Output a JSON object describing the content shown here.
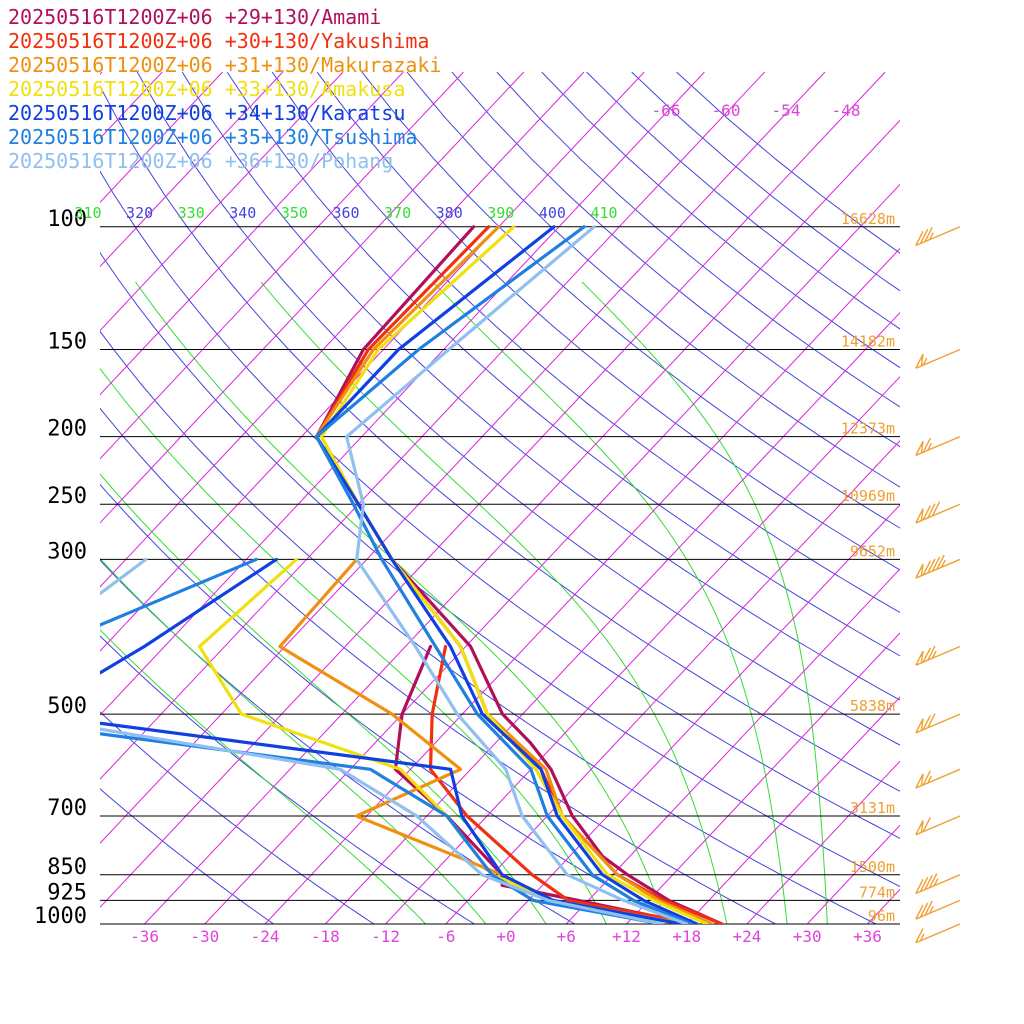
{
  "chart_data": {
    "type": "line",
    "title": "",
    "xlabel": "",
    "ylabel": "",
    "legend_placement": "top-left",
    "pressure_ticks": [
      {
        "p": 100,
        "label": "100",
        "height": "16628m"
      },
      {
        "p": 150,
        "label": "150",
        "height": "14182m"
      },
      {
        "p": 200,
        "label": "200",
        "height": "12373m"
      },
      {
        "p": 250,
        "label": "250",
        "height": "10969m"
      },
      {
        "p": 300,
        "label": "300",
        "height": "9652m"
      },
      {
        "p": 500,
        "label": "500",
        "height": "5838m"
      },
      {
        "p": 700,
        "label": "700",
        "height": "3131m"
      },
      {
        "p": 850,
        "label": "850",
        "height": "1500m"
      },
      {
        "p": 925,
        "label": "925",
        "height": "774m"
      },
      {
        "p": 1000,
        "label": "1000",
        "height": "96m"
      }
    ],
    "temperature_ticks": [
      {
        "t": -36,
        "label": "-36"
      },
      {
        "t": -30,
        "label": "-30"
      },
      {
        "t": -24,
        "label": "-24"
      },
      {
        "t": -18,
        "label": "-18"
      },
      {
        "t": -12,
        "label": "-12"
      },
      {
        "t": -6,
        "label": "-6"
      },
      {
        "t": 0,
        "label": "+0"
      },
      {
        "t": 6,
        "label": "+6"
      },
      {
        "t": 12,
        "label": "+12"
      },
      {
        "t": 18,
        "label": "+18"
      },
      {
        "t": 24,
        "label": "+24"
      },
      {
        "t": 30,
        "label": "+30"
      },
      {
        "t": 36,
        "label": "+36"
      }
    ],
    "upper_temp_labels": [
      "-66",
      "-60",
      "-54",
      "-48"
    ],
    "theta_labels": [
      "310",
      "320",
      "330",
      "340",
      "350",
      "360",
      "370",
      "380",
      "390",
      "400",
      "410"
    ],
    "colors": {
      "isotherm": "#dd22dd",
      "dry_adiabat": "#4444dd",
      "moist_adiabat": "#33dd33",
      "height": "#f0a030",
      "wind": "#f0a030",
      "isobar": "#000000",
      "axis_label": "#dd44dd"
    },
    "series": [
      {
        "name": "20250516T1200Z+06 +29+130/Amami",
        "color": "#b0105a",
        "temperature": [
          [
            100,
            -68.5
          ],
          [
            150,
            -68.0
          ],
          [
            200,
            -64.5
          ],
          [
            250,
            -54.0
          ],
          [
            300,
            -45.5
          ],
          [
            400,
            -29.5
          ],
          [
            500,
            -20.0
          ],
          [
            550,
            -14.5
          ],
          [
            600,
            -10.0
          ],
          [
            700,
            -3.5
          ],
          [
            800,
            3.3
          ],
          [
            850,
            7.5
          ],
          [
            925,
            14.0
          ],
          [
            1000,
            21.5
          ]
        ],
        "dewpoint": [
          [
            400,
            -33.5
          ],
          [
            500,
            -30.0
          ],
          [
            600,
            -25.5
          ],
          [
            700,
            -16.0
          ],
          [
            850,
            -5.0
          ],
          [
            880,
            -4.0
          ],
          [
            925,
            5.0
          ],
          [
            1000,
            18.5
          ]
        ]
      },
      {
        "name": "20250516T1200Z+06 +30+130/Yakushima",
        "color": "#f03010",
        "temperature": [
          [
            100,
            -67.0
          ],
          [
            150,
            -67.5
          ],
          [
            200,
            -64.5
          ],
          [
            250,
            -54.0
          ],
          [
            300,
            -45.5
          ],
          [
            400,
            -30.5
          ],
          [
            500,
            -21.5
          ],
          [
            600,
            -11.0
          ],
          [
            700,
            -4.5
          ],
          [
            850,
            6.5
          ],
          [
            925,
            13.5
          ],
          [
            1000,
            21.5
          ]
        ],
        "dewpoint": [
          [
            400,
            -32.0
          ],
          [
            500,
            -27.0
          ],
          [
            600,
            -22.0
          ],
          [
            700,
            -14.0
          ],
          [
            850,
            -2.0
          ],
          [
            925,
            4.0
          ],
          [
            1000,
            19.0
          ]
        ]
      },
      {
        "name": "20250516T1200Z+06 +31+130/Makurazaki",
        "color": "#f09010",
        "temperature": [
          [
            100,
            -66.0
          ],
          [
            150,
            -67.0
          ],
          [
            200,
            -64.5
          ],
          [
            250,
            -54.0
          ],
          [
            300,
            -45.5
          ],
          [
            400,
            -30.5
          ],
          [
            500,
            -21.5
          ],
          [
            600,
            -10.5
          ],
          [
            700,
            -4.5
          ],
          [
            850,
            6.5
          ],
          [
            925,
            13.0
          ],
          [
            1000,
            20.5
          ]
        ],
        "dewpoint": [
          [
            300,
            -49.0
          ],
          [
            400,
            -48.5
          ],
          [
            500,
            -31.0
          ],
          [
            600,
            -19.0
          ],
          [
            700,
            -25.0
          ],
          [
            850,
            -5.0
          ],
          [
            925,
            2.0
          ],
          [
            1000,
            18.0
          ]
        ]
      },
      {
        "name": "20250516T1200Z+06 +33+130/Amakusa",
        "color": "#f0e010",
        "temperature": [
          [
            100,
            -64.5
          ],
          [
            150,
            -66.5
          ],
          [
            200,
            -64.0
          ],
          [
            250,
            -54.0
          ],
          [
            300,
            -45.5
          ],
          [
            400,
            -30.5
          ],
          [
            500,
            -21.5
          ],
          [
            600,
            -11.5
          ],
          [
            700,
            -4.5
          ],
          [
            850,
            5.5
          ],
          [
            925,
            12.5
          ],
          [
            1000,
            20.0
          ]
        ],
        "dewpoint": [
          [
            300,
            -55.0
          ],
          [
            400,
            -56.5
          ],
          [
            500,
            -46.0
          ],
          [
            600,
            -25.0
          ],
          [
            700,
            -16.0
          ],
          [
            850,
            -6.0
          ],
          [
            925,
            2.5
          ],
          [
            1000,
            17.5
          ]
        ]
      },
      {
        "name": "20250516T1200Z+06 +34+130/Karatsu",
        "color": "#1040e0",
        "temperature": [
          [
            100,
            -60.5
          ],
          [
            150,
            -64.5
          ],
          [
            200,
            -64.5
          ],
          [
            250,
            -54.0
          ],
          [
            300,
            -45.5
          ],
          [
            400,
            -31.5
          ],
          [
            500,
            -22.0
          ],
          [
            600,
            -11.0
          ],
          [
            700,
            -5.0
          ],
          [
            850,
            5.0
          ],
          [
            925,
            11.5
          ],
          [
            1000,
            19.0
          ]
        ],
        "dewpoint": [
          [
            300,
            -57.0
          ],
          [
            400,
            -62.0
          ],
          [
            500,
            -67.0
          ],
          [
            600,
            -20.0
          ],
          [
            700,
            -14.5
          ],
          [
            850,
            -5.0
          ],
          [
            925,
            2.5
          ],
          [
            1000,
            17.5
          ]
        ]
      },
      {
        "name": "20250516T1200Z+06 +35+130/Tsushima",
        "color": "#2080e0",
        "temperature": [
          [
            100,
            -57.5
          ],
          [
            150,
            -62.5
          ],
          [
            200,
            -64.5
          ],
          [
            250,
            -54.5
          ],
          [
            300,
            -46.5
          ],
          [
            400,
            -33.0
          ],
          [
            500,
            -22.5
          ],
          [
            600,
            -12.0
          ],
          [
            700,
            -6.0
          ],
          [
            850,
            4.0
          ],
          [
            925,
            10.5
          ],
          [
            1000,
            18.5
          ]
        ],
        "dewpoint": [
          [
            300,
            -59.0
          ],
          [
            400,
            -71.5
          ],
          [
            500,
            -75.0
          ],
          [
            600,
            -28.0
          ],
          [
            700,
            -16.0
          ],
          [
            850,
            -6.0
          ],
          [
            925,
            0.5
          ],
          [
            1000,
            15.5
          ]
        ]
      },
      {
        "name": "20250516T1200Z+06 +36+130/Pohang",
        "color": "#90c0f0",
        "temperature": [
          [
            100,
            -56.5
          ],
          [
            150,
            -59.5
          ],
          [
            200,
            -61.5
          ],
          [
            250,
            -53.5
          ],
          [
            300,
            -49.0
          ],
          [
            400,
            -35.0
          ],
          [
            500,
            -24.5
          ],
          [
            600,
            -14.5
          ],
          [
            700,
            -8.5
          ],
          [
            850,
            1.5
          ],
          [
            925,
            9.5
          ],
          [
            1000,
            18.0
          ]
        ],
        "dewpoint": [
          [
            300,
            -70.0
          ],
          [
            400,
            -73.5
          ],
          [
            500,
            -69.0
          ],
          [
            600,
            -31.0
          ],
          [
            700,
            -19.0
          ],
          [
            850,
            -7.0
          ],
          [
            925,
            2.0
          ],
          [
            1000,
            15.5
          ]
        ]
      }
    ],
    "wind_barbs": [
      {
        "p": 100,
        "knots": 35
      },
      {
        "p": 150,
        "knots": 55
      },
      {
        "p": 200,
        "knots": 65
      },
      {
        "p": 250,
        "knots": 80
      },
      {
        "p": 300,
        "knots": 95
      },
      {
        "p": 400,
        "knots": 75
      },
      {
        "p": 500,
        "knots": 70
      },
      {
        "p": 600,
        "knots": 65
      },
      {
        "p": 700,
        "knots": 60
      },
      {
        "p": 850,
        "knots": 45
      },
      {
        "p": 925,
        "knots": 35
      },
      {
        "p": 1000,
        "knots": 15
      }
    ]
  }
}
